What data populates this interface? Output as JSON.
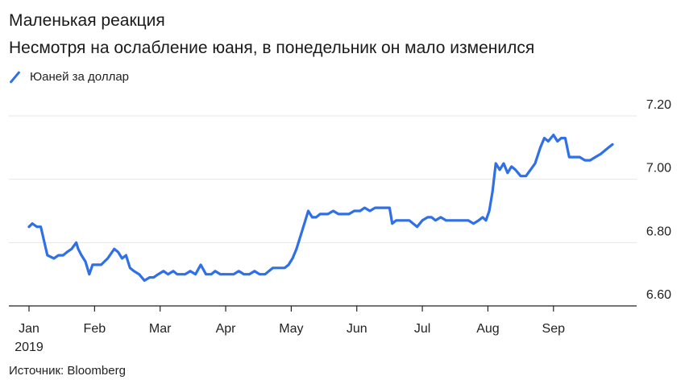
{
  "title": "Маленькая реакция",
  "subtitle": "Несмотря на ослабление юаня, в понедельник он мало изменился",
  "legend": {
    "label": "Юаней за доллар",
    "color": "#2f6fe8"
  },
  "source": "Источник: Bloomberg",
  "chart_data": {
    "type": "line",
    "title": "Маленькая реакция",
    "subtitle": "Несмотря на ослабление юаня, в понедельник он мало изменился",
    "xlabel": "",
    "ylabel": "",
    "x_range": [
      0,
      8.9
    ],
    "ylim": [
      6.6,
      7.2
    ],
    "y_ticks": [
      6.6,
      6.8,
      7.0,
      7.2
    ],
    "y_tick_labels": [
      "6.60",
      "6.80",
      "7.00",
      "7.20"
    ],
    "x_ticks": [
      {
        "pos": 0,
        "label": "Jan",
        "sublabel": "2019"
      },
      {
        "pos": 1,
        "label": "Feb"
      },
      {
        "pos": 2,
        "label": "Mar"
      },
      {
        "pos": 3,
        "label": "Apr"
      },
      {
        "pos": 4,
        "label": "May"
      },
      {
        "pos": 5,
        "label": "Jun"
      },
      {
        "pos": 6,
        "label": "Jul"
      },
      {
        "pos": 7,
        "label": "Aug"
      },
      {
        "pos": 8,
        "label": "Sep"
      }
    ],
    "grid": true,
    "y_axis_side": "right",
    "series": [
      {
        "name": "Юаней за доллар",
        "color": "#2f6fe8",
        "x": [
          0,
          0.05,
          0.12,
          0.18,
          0.28,
          0.38,
          0.45,
          0.52,
          0.58,
          0.65,
          0.72,
          0.75,
          0.8,
          0.86,
          0.92,
          0.97,
          1.03,
          1.1,
          1.2,
          1.3,
          1.36,
          1.42,
          1.48,
          1.54,
          1.6,
          1.68,
          1.76,
          1.84,
          1.9,
          1.97,
          2.05,
          2.12,
          2.2,
          2.26,
          2.32,
          2.38,
          2.46,
          2.54,
          2.62,
          2.7,
          2.78,
          2.84,
          2.92,
          3.0,
          3.06,
          3.12,
          3.2,
          3.28,
          3.36,
          3.44,
          3.52,
          3.6,
          3.66,
          3.72,
          3.78,
          3.84,
          3.9,
          3.96,
          4.02,
          4.08,
          4.14,
          4.2,
          4.26,
          4.32,
          4.38,
          4.44,
          4.5,
          4.56,
          4.64,
          4.72,
          4.8,
          4.88,
          4.96,
          5.05,
          5.12,
          5.2,
          5.28,
          5.36,
          5.44,
          5.5,
          5.54,
          5.6,
          5.7,
          5.8,
          5.86,
          5.92,
          6.0,
          6.08,
          6.14,
          6.2,
          6.28,
          6.36,
          6.44,
          6.52,
          6.6,
          6.7,
          6.78,
          6.86,
          6.92,
          6.97,
          7.02,
          7.07,
          7.12,
          7.18,
          7.24,
          7.3,
          7.36,
          7.42,
          7.5,
          7.58,
          7.65,
          7.72,
          7.8,
          7.86,
          7.92,
          8.0,
          8.06,
          8.12,
          8.18,
          8.24,
          8.32,
          8.4,
          8.48,
          8.56,
          8.64,
          8.72,
          8.78,
          8.84,
          8.9
        ],
        "y": [
          6.85,
          6.86,
          6.85,
          6.85,
          6.76,
          6.75,
          6.76,
          6.76,
          6.77,
          6.78,
          6.8,
          6.78,
          6.76,
          6.74,
          6.7,
          6.73,
          6.73,
          6.73,
          6.75,
          6.78,
          6.77,
          6.75,
          6.76,
          6.72,
          6.71,
          6.7,
          6.68,
          6.69,
          6.69,
          6.7,
          6.71,
          6.7,
          6.71,
          6.7,
          6.7,
          6.7,
          6.71,
          6.7,
          6.73,
          6.7,
          6.7,
          6.71,
          6.7,
          6.7,
          6.7,
          6.7,
          6.71,
          6.7,
          6.7,
          6.71,
          6.7,
          6.7,
          6.71,
          6.72,
          6.72,
          6.72,
          6.72,
          6.73,
          6.75,
          6.78,
          6.82,
          6.86,
          6.9,
          6.88,
          6.88,
          6.89,
          6.89,
          6.89,
          6.9,
          6.89,
          6.89,
          6.89,
          6.9,
          6.9,
          6.91,
          6.9,
          6.91,
          6.91,
          6.91,
          6.91,
          6.86,
          6.87,
          6.87,
          6.87,
          6.86,
          6.85,
          6.87,
          6.88,
          6.88,
          6.87,
          6.88,
          6.87,
          6.87,
          6.87,
          6.87,
          6.87,
          6.86,
          6.87,
          6.88,
          6.87,
          6.9,
          6.96,
          7.05,
          7.03,
          7.05,
          7.02,
          7.04,
          7.03,
          7.01,
          7.01,
          7.03,
          7.05,
          7.1,
          7.13,
          7.12,
          7.14,
          7.12,
          7.13,
          7.13,
          7.07,
          7.07,
          7.07,
          7.06,
          7.06,
          7.07,
          7.08,
          7.09,
          7.1,
          7.11
        ]
      }
    ]
  }
}
